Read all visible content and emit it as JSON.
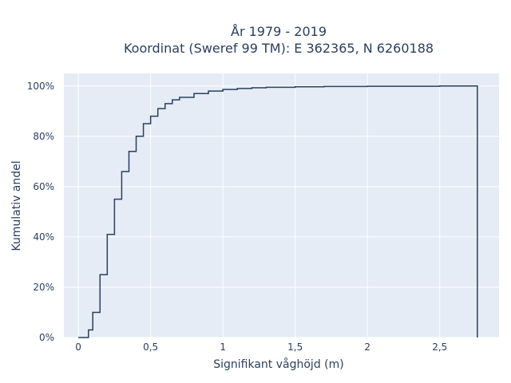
{
  "chart_data": {
    "type": "line",
    "line_shape": "step",
    "title": [
      "År 1979 - 2019",
      "Koordinat (Sweref 99 TM): E 362365, N 6260188"
    ],
    "xlabel": "Signifikant våghöjd (m)",
    "ylabel": "Kumulativ andel",
    "xlim": [
      -0.1,
      2.91
    ],
    "ylim": [
      0,
      1.05
    ],
    "xticks": [
      0,
      0.5,
      1,
      1.5,
      2,
      2.5
    ],
    "xtick_labels": [
      "0",
      "0,5",
      "1",
      "1,5",
      "2",
      "2,5"
    ],
    "yticks": [
      0,
      0.2,
      0.4,
      0.6,
      0.8,
      1.0
    ],
    "ytick_labels": [
      "0%",
      "20%",
      "40%",
      "60%",
      "80%",
      "100%"
    ],
    "grid": true,
    "colors": {
      "plot_bg": "#e5ecf6",
      "grid": "#ffffff",
      "line": "#2a3f5f",
      "text": "#2a3f5f"
    },
    "series": [
      {
        "x": [
          0.0,
          0.05,
          0.07,
          0.1,
          0.15,
          0.2,
          0.25,
          0.3,
          0.35,
          0.4,
          0.45,
          0.5,
          0.55,
          0.6,
          0.65,
          0.7,
          0.8,
          0.9,
          1.0,
          1.1,
          1.2,
          1.3,
          1.5,
          1.7,
          2.0,
          2.5,
          2.76,
          2.76
        ],
        "y": [
          0.0,
          0.0,
          0.03,
          0.1,
          0.25,
          0.41,
          0.55,
          0.66,
          0.74,
          0.8,
          0.85,
          0.88,
          0.91,
          0.93,
          0.945,
          0.955,
          0.97,
          0.98,
          0.986,
          0.99,
          0.993,
          0.995,
          0.997,
          0.998,
          0.999,
          1.0,
          1.0,
          0.0
        ]
      }
    ]
  }
}
